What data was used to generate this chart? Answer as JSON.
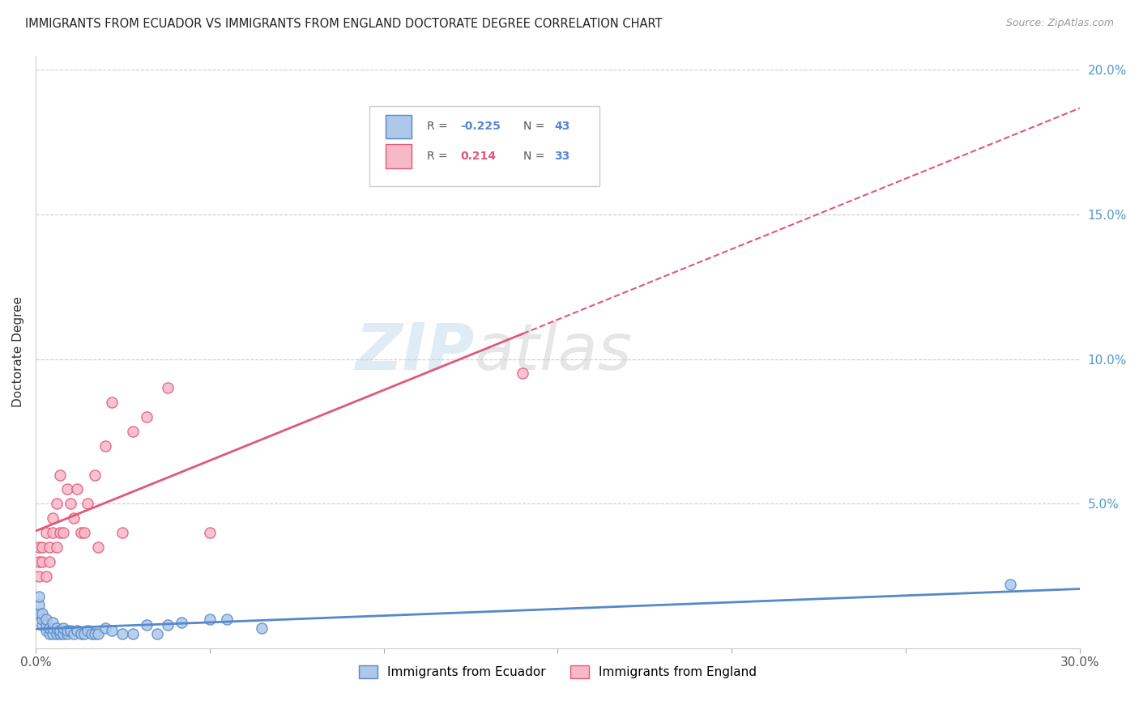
{
  "title": "IMMIGRANTS FROM ECUADOR VS IMMIGRANTS FROM ENGLAND DOCTORATE DEGREE CORRELATION CHART",
  "source": "Source: ZipAtlas.com",
  "ylabel": "Doctorate Degree",
  "xlim": [
    0.0,
    0.3
  ],
  "ylim": [
    0.0,
    0.205
  ],
  "ecuador_color": "#adc8e8",
  "england_color": "#f7b8c8",
  "ecuador_line_color": "#5588cc",
  "england_line_color": "#e05878",
  "legend_R_ecuador": "-0.225",
  "legend_N_ecuador": "43",
  "legend_R_england": "0.214",
  "legend_N_england": "33",
  "ecuador_x": [
    0.001,
    0.001,
    0.001,
    0.002,
    0.002,
    0.002,
    0.003,
    0.003,
    0.003,
    0.004,
    0.004,
    0.005,
    0.005,
    0.005,
    0.006,
    0.006,
    0.007,
    0.007,
    0.008,
    0.008,
    0.009,
    0.009,
    0.01,
    0.011,
    0.012,
    0.013,
    0.014,
    0.015,
    0.016,
    0.017,
    0.018,
    0.02,
    0.022,
    0.025,
    0.028,
    0.032,
    0.035,
    0.038,
    0.042,
    0.05,
    0.055,
    0.065,
    0.28
  ],
  "ecuador_y": [
    0.012,
    0.015,
    0.018,
    0.008,
    0.01,
    0.012,
    0.006,
    0.008,
    0.01,
    0.005,
    0.007,
    0.005,
    0.007,
    0.009,
    0.005,
    0.007,
    0.005,
    0.006,
    0.005,
    0.007,
    0.005,
    0.006,
    0.006,
    0.005,
    0.006,
    0.005,
    0.005,
    0.006,
    0.005,
    0.005,
    0.005,
    0.007,
    0.006,
    0.005,
    0.005,
    0.008,
    0.005,
    0.008,
    0.009,
    0.01,
    0.01,
    0.007,
    0.022
  ],
  "england_x": [
    0.001,
    0.001,
    0.001,
    0.002,
    0.002,
    0.003,
    0.003,
    0.004,
    0.004,
    0.005,
    0.005,
    0.006,
    0.006,
    0.007,
    0.007,
    0.008,
    0.009,
    0.01,
    0.011,
    0.012,
    0.013,
    0.014,
    0.015,
    0.017,
    0.018,
    0.02,
    0.022,
    0.025,
    0.028,
    0.032,
    0.038,
    0.05,
    0.14
  ],
  "england_y": [
    0.025,
    0.03,
    0.035,
    0.03,
    0.035,
    0.025,
    0.04,
    0.03,
    0.035,
    0.04,
    0.045,
    0.035,
    0.05,
    0.04,
    0.06,
    0.04,
    0.055,
    0.05,
    0.045,
    0.055,
    0.04,
    0.04,
    0.05,
    0.06,
    0.035,
    0.07,
    0.085,
    0.04,
    0.075,
    0.08,
    0.09,
    0.04,
    0.095
  ]
}
